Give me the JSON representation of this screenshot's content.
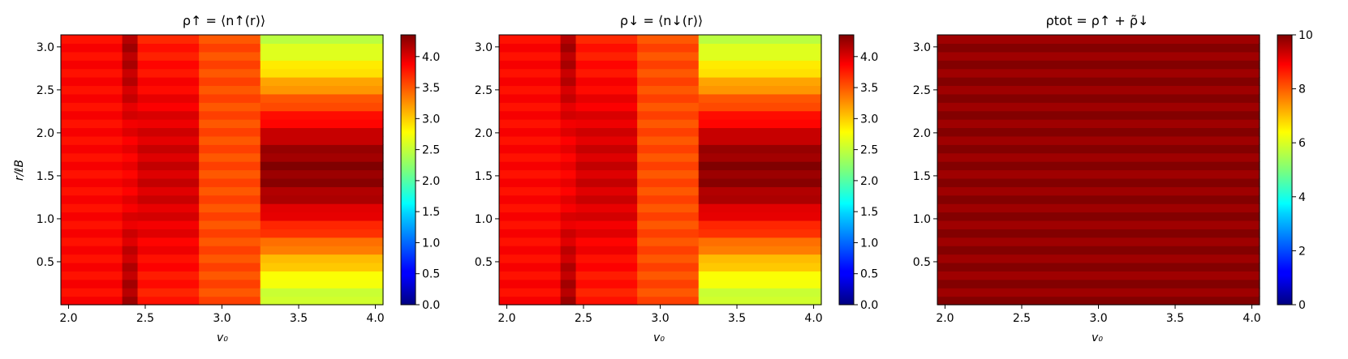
{
  "chart_data": [
    {
      "type": "heatmap",
      "title": "ρ↑ = ⟨n↑(r)⟩",
      "xlabel": "v₀",
      "ylabel": "r/ℓB",
      "x_edges": [
        1.95,
        2.35,
        2.45,
        2.85,
        3.25,
        4.05
      ],
      "y_range": [
        0.0,
        3.14
      ],
      "y_rows": 32,
      "xlim": [
        1.95,
        4.05
      ],
      "ylim": [
        0.0,
        3.14
      ],
      "xticks": [
        "2.0",
        "2.5",
        "3.0",
        "3.5",
        "4.0"
      ],
      "xtick_values": [
        2.0,
        2.5,
        3.0,
        3.5,
        4.0
      ],
      "yticks": [
        "0.5",
        "1.0",
        "1.5",
        "2.0",
        "2.5",
        "3.0"
      ],
      "ytick_values": [
        0.5,
        1.0,
        1.5,
        2.0,
        2.5,
        3.0
      ],
      "colorbar": {
        "colormap": "jet",
        "range": [
          0.0,
          4.35
        ],
        "ticks": [
          "0.0",
          "0.5",
          "1.0",
          "1.5",
          "2.0",
          "2.5",
          "3.0",
          "3.5",
          "4.0"
        ],
        "tick_values": [
          0.0,
          0.5,
          1.0,
          1.5,
          2.0,
          2.5,
          3.0,
          3.5,
          4.0
        ]
      },
      "column_profiles": [
        {
          "x_range": [
            1.95,
            2.35
          ],
          "edge_value": 3.85,
          "center_value": 3.85
        },
        {
          "x_range": [
            2.35,
            2.45
          ],
          "edge_value": 4.2,
          "center_value": 3.9
        },
        {
          "x_range": [
            2.45,
            2.85
          ],
          "edge_value": 3.75,
          "center_value": 4.05
        },
        {
          "x_range": [
            2.85,
            3.25
          ],
          "edge_value": 3.55,
          "center_value": 3.55
        },
        {
          "x_range": [
            3.25,
            4.05
          ],
          "edge_value": 2.5,
          "center_value": 4.3
        }
      ]
    },
    {
      "type": "heatmap",
      "title": "ρ↓ = ⟨n↓(r)⟩",
      "xlabel": "v₀",
      "ylabel": "",
      "x_edges": [
        1.95,
        2.35,
        2.45,
        2.85,
        3.25,
        4.05
      ],
      "y_range": [
        0.0,
        3.14
      ],
      "y_rows": 32,
      "xlim": [
        1.95,
        4.05
      ],
      "ylim": [
        0.0,
        3.14
      ],
      "xticks": [
        "2.0",
        "2.5",
        "3.0",
        "3.5",
        "4.0"
      ],
      "xtick_values": [
        2.0,
        2.5,
        3.0,
        3.5,
        4.0
      ],
      "yticks": [
        "0.5",
        "1.0",
        "1.5",
        "2.0",
        "2.5",
        "3.0"
      ],
      "ytick_values": [
        0.5,
        1.0,
        1.5,
        2.0,
        2.5,
        3.0
      ],
      "colorbar": {
        "colormap": "jet",
        "range": [
          0.0,
          4.35
        ],
        "ticks": [
          "0.0",
          "0.5",
          "1.0",
          "1.5",
          "2.0",
          "2.5",
          "3.0",
          "3.5",
          "4.0"
        ],
        "tick_values": [
          0.0,
          0.5,
          1.0,
          1.5,
          2.0,
          2.5,
          3.0,
          3.5,
          4.0
        ]
      },
      "column_profiles": [
        {
          "x_range": [
            1.95,
            2.35
          ],
          "edge_value": 3.85,
          "center_value": 3.85
        },
        {
          "x_range": [
            2.35,
            2.45
          ],
          "edge_value": 4.2,
          "center_value": 3.9
        },
        {
          "x_range": [
            2.45,
            2.85
          ],
          "edge_value": 3.75,
          "center_value": 4.05
        },
        {
          "x_range": [
            2.85,
            3.25
          ],
          "edge_value": 3.55,
          "center_value": 3.55
        },
        {
          "x_range": [
            3.25,
            4.05
          ],
          "edge_value": 2.5,
          "center_value": 4.3
        }
      ]
    },
    {
      "type": "heatmap",
      "title": "ρtot = ρ↑ + ρ̃↓",
      "xlabel": "v₀",
      "ylabel": "",
      "x_edges": [
        1.95,
        4.05
      ],
      "y_range": [
        0.0,
        3.14
      ],
      "y_rows": 32,
      "xlim": [
        1.95,
        4.05
      ],
      "ylim": [
        0.0,
        3.14
      ],
      "xticks": [
        "2.0",
        "2.5",
        "3.0",
        "3.5",
        "4.0"
      ],
      "xtick_values": [
        2.0,
        2.5,
        3.0,
        3.5,
        4.0
      ],
      "yticks": [
        "0.5",
        "1.0",
        "1.5",
        "2.0",
        "2.5",
        "3.0"
      ],
      "ytick_values": [
        0.5,
        1.0,
        1.5,
        2.0,
        2.5,
        3.0
      ],
      "colorbar": {
        "colormap": "jet",
        "range": [
          0,
          10
        ],
        "ticks": [
          "0",
          "2",
          "4",
          "6",
          "8",
          "10"
        ],
        "tick_values": [
          0,
          2,
          4,
          6,
          8,
          10
        ]
      },
      "column_profiles": [
        {
          "x_range": [
            1.95,
            4.05
          ],
          "edge_value": 9.85,
          "center_value": 9.85
        }
      ]
    }
  ]
}
